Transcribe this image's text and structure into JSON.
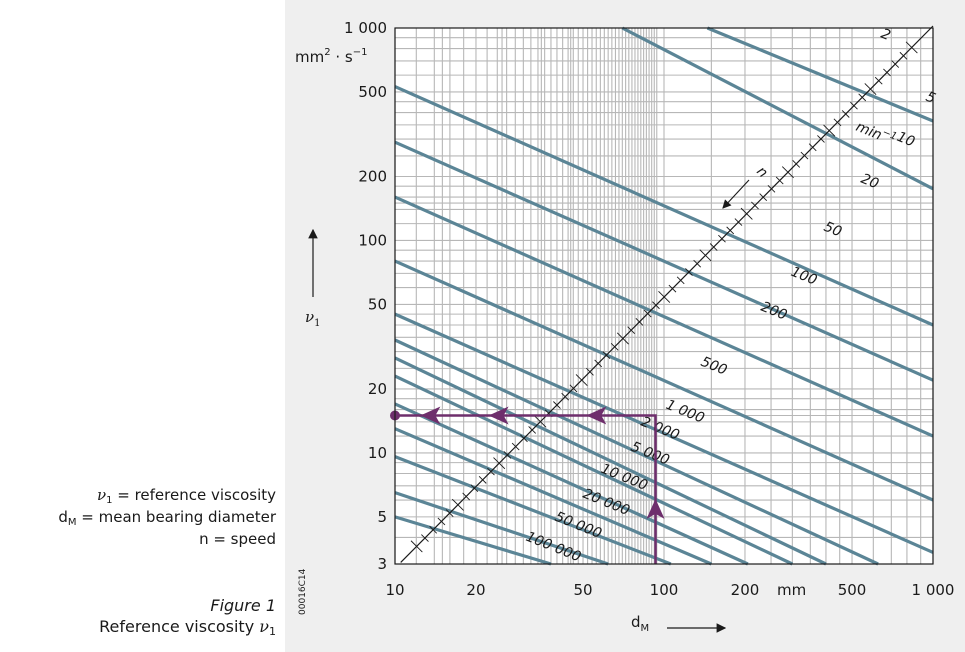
{
  "legend": {
    "nu_symbol": "ν",
    "nu_subscript": "1",
    "nu_desc": " = reference viscosity",
    "d_symbol": "d",
    "d_subscript": "M",
    "d_desc": " = mean bearing diameter",
    "n_line": "n = speed"
  },
  "caption": {
    "figure": "Figure 1",
    "title": "Reference viscosity ",
    "symbol": "ν",
    "subscript": "1"
  },
  "image_code": "00016C14",
  "chart_data": {
    "type": "line",
    "x_scale": "log",
    "y_scale": "log",
    "xlim": [
      10,
      1000
    ],
    "ylim": [
      3,
      1000
    ],
    "xlabel": "d",
    "xlabel_sub": "M",
    "x_unit": "mm",
    "ylabel": "ν",
    "ylabel_sub": "1",
    "y_unit_main": "mm",
    "y_unit_sup": "2",
    "y_unit_rest": " · s",
    "y_unit_sup2": "−1",
    "x_ticks": [
      {
        "value": 10,
        "label": "10"
      },
      {
        "value": 20,
        "label": "20"
      },
      {
        "value": 50,
        "label": "50"
      },
      {
        "value": 100,
        "label": "100"
      },
      {
        "value": 200,
        "label": "200"
      },
      {
        "value": 500,
        "label": "500"
      },
      {
        "value": 1000,
        "label": "1 000"
      }
    ],
    "y_ticks": [
      {
        "value": 3,
        "label": "3"
      },
      {
        "value": 5,
        "label": "5"
      },
      {
        "value": 10,
        "label": "10"
      },
      {
        "value": 20,
        "label": "20"
      },
      {
        "value": 50,
        "label": "50"
      },
      {
        "value": 100,
        "label": "100"
      },
      {
        "value": 200,
        "label": "200"
      },
      {
        "value": 500,
        "label": "500"
      },
      {
        "value": 1000,
        "label": "1 000"
      }
    ],
    "n_axis_label": "n",
    "speed_unit": "min",
    "speed_unit_sup": "−1",
    "speed_labels": [
      "2",
      "5",
      "10",
      "20",
      "50",
      "100",
      "200",
      "500",
      "1 000",
      "2 000",
      "5 000",
      "10 000",
      "20 000",
      "50 000",
      "100 000"
    ],
    "speed_lines": [
      {
        "n": 2,
        "x1": 145,
        "y1": 1000,
        "x2": 1000,
        "y2": 365
      },
      {
        "n": 5,
        "x1": 70,
        "y1": 1000,
        "x2": 1000,
        "y2": 175
      },
      {
        "n": 10,
        "x1": 10,
        "y1": 530,
        "x2": 1000,
        "y2": 40
      },
      {
        "n": 20,
        "x1": 10,
        "y1": 290,
        "x2": 1000,
        "y2": 22
      },
      {
        "n": 50,
        "x1": 10,
        "y1": 160,
        "x2": 1000,
        "y2": 12
      },
      {
        "n": 100,
        "x1": 10,
        "y1": 80,
        "x2": 1000,
        "y2": 6
      },
      {
        "n": 200,
        "x1": 10,
        "y1": 45,
        "x2": 1000,
        "y2": 3.4
      },
      {
        "n": 500,
        "x1": 10,
        "y1": 34,
        "x2": 625,
        "y2": 3
      },
      {
        "n": 1000,
        "x1": 10,
        "y1": 28,
        "x2": 400,
        "y2": 3
      },
      {
        "n": 2000,
        "x1": 10,
        "y1": 23,
        "x2": 300,
        "y2": 3
      },
      {
        "n": 5000,
        "x1": 10,
        "y1": 17,
        "x2": 205,
        "y2": 3
      },
      {
        "n": 10000,
        "x1": 10,
        "y1": 13,
        "x2": 150,
        "y2": 3
      },
      {
        "n": 20000,
        "x1": 10,
        "y1": 9.6,
        "x2": 106,
        "y2": 3
      },
      {
        "n": 50000,
        "x1": 10,
        "y1": 6.5,
        "x2": 62,
        "y2": 3
      },
      {
        "n": 100000,
        "x1": 10,
        "y1": 5,
        "x2": 38,
        "y2": 3
      }
    ],
    "example_path": [
      {
        "x": 93,
        "y": 3
      },
      {
        "x": 93,
        "y": 15
      },
      {
        "x": 10,
        "y": 15
      }
    ],
    "colors": {
      "speed_lines": "#5b8596",
      "grid": "#b7b7b7",
      "example": "#6e2e6c",
      "panel_bg": "#efefef",
      "plot_bg": "#ffffff"
    }
  }
}
